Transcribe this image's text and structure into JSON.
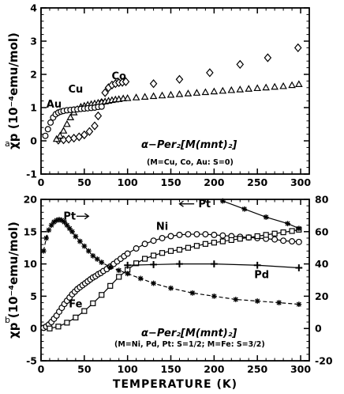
{
  "chart_data": [
    {
      "panel": "a",
      "type": "scatter",
      "ylabel": "χp (10⁻⁴emu/mol)",
      "xlim": [
        0,
        310
      ],
      "ylim": [
        -1,
        4
      ],
      "xticks": [
        0,
        50,
        100,
        150,
        200,
        250,
        300
      ],
      "yticks": [
        -1,
        0,
        1,
        2,
        3,
        4
      ],
      "formula": "α−Per₂[M(mnt)₂]",
      "note": "(M=Cu, Co, Au: S=0)",
      "series": [
        {
          "name": "Co",
          "marker": "diamond",
          "label_pos": [
            90,
            1.85
          ],
          "x": [
            20,
            26,
            32,
            38,
            44,
            50,
            56,
            62,
            66,
            70,
            74,
            78,
            82,
            86,
            90,
            94,
            98,
            130,
            160,
            195,
            230,
            262,
            297
          ],
          "y": [
            0.02,
            0.03,
            0.05,
            0.08,
            0.12,
            0.18,
            0.28,
            0.45,
            0.75,
            1.15,
            1.45,
            1.6,
            1.68,
            1.72,
            1.75,
            1.76,
            1.78,
            1.72,
            1.85,
            2.05,
            2.3,
            2.5,
            2.8
          ]
        },
        {
          "name": "Cu",
          "marker": "triangle",
          "label_pos": [
            40,
            1.45
          ],
          "x": [
            18,
            22,
            26,
            30,
            34,
            38,
            42,
            46,
            50,
            54,
            58,
            62,
            66,
            70,
            74,
            78,
            82,
            86,
            90,
            95,
            100,
            110,
            120,
            130,
            140,
            150,
            160,
            170,
            180,
            190,
            200,
            210,
            220,
            230,
            240,
            250,
            260,
            270,
            280,
            290,
            298
          ],
          "y": [
            0.05,
            0.15,
            0.3,
            0.5,
            0.7,
            0.85,
            0.95,
            1.02,
            1.05,
            1.08,
            1.1,
            1.12,
            1.14,
            1.16,
            1.18,
            1.2,
            1.22,
            1.24,
            1.25,
            1.27,
            1.28,
            1.3,
            1.32,
            1.34,
            1.36,
            1.38,
            1.4,
            1.42,
            1.44,
            1.46,
            1.48,
            1.5,
            1.52,
            1.54,
            1.56,
            1.58,
            1.6,
            1.62,
            1.64,
            1.67,
            1.7
          ]
        },
        {
          "name": "Au",
          "marker": "circle",
          "label_pos": [
            15,
            1.0
          ],
          "x": [
            5,
            8,
            11,
            14,
            17,
            20,
            23,
            26,
            30,
            34,
            38,
            42,
            46,
            50,
            54,
            58,
            62,
            66,
            70
          ],
          "y": [
            0.15,
            0.35,
            0.55,
            0.7,
            0.8,
            0.85,
            0.88,
            0.9,
            0.92,
            0.93,
            0.94,
            0.95,
            0.96,
            0.97,
            0.98,
            0.99,
            1.0,
            1.02,
            1.03
          ]
        }
      ]
    },
    {
      "panel": "b",
      "type": "line",
      "ylabel": "χp (10⁻⁴emu/mol)",
      "xlabel": "TEMPERATURE (K)",
      "xlim": [
        0,
        310
      ],
      "ylim": [
        -5,
        20
      ],
      "y2lim": [
        -20,
        80
      ],
      "xticks": [
        0,
        50,
        100,
        150,
        200,
        250,
        300
      ],
      "yticks": [
        -5,
        0,
        5,
        10,
        15,
        20
      ],
      "y2ticks": [
        -20,
        0,
        20,
        40,
        60,
        80
      ],
      "formula": "α−Per₂[M(mnt)₂]",
      "note": "(M=Ni, Pd, Pt: S=1/2; M=Fe: S=3/2)",
      "arrow_left_text": "Pt",
      "arrow_right_text": "Pt",
      "series": [
        {
          "name": "Ni",
          "marker": "circle",
          "axis": "left",
          "label_pos": [
            140,
            15.3
          ],
          "x": [
            3,
            6,
            9,
            12,
            15,
            18,
            21,
            24,
            27,
            30,
            33,
            36,
            39,
            42,
            45,
            48,
            51,
            54,
            57,
            60,
            63,
            66,
            69,
            72,
            76,
            80,
            84,
            88,
            92,
            96,
            100,
            110,
            120,
            130,
            140,
            150,
            160,
            170,
            180,
            190,
            200,
            210,
            220,
            230,
            240,
            250,
            260,
            270,
            280,
            290,
            298
          ],
          "y": [
            0.1,
            0.3,
            0.6,
            1.0,
            1.5,
            2.0,
            2.6,
            3.2,
            3.8,
            4.3,
            4.8,
            5.3,
            5.7,
            6.1,
            6.4,
            6.7,
            7.0,
            7.3,
            7.6,
            7.9,
            8.1,
            8.4,
            8.6,
            8.9,
            9.2,
            9.6,
            10.0,
            10.4,
            10.8,
            11.2,
            11.6,
            12.4,
            13.1,
            13.6,
            14.0,
            14.3,
            14.5,
            14.6,
            14.6,
            14.6,
            14.5,
            14.4,
            14.3,
            14.2,
            14.1,
            14.0,
            13.9,
            13.8,
            13.6,
            13.5,
            13.4
          ]
        },
        {
          "name": "Fe",
          "marker": "square",
          "axis": "left",
          "label_pos": [
            40,
            3.3
          ],
          "x": [
            10,
            20,
            30,
            40,
            50,
            60,
            70,
            80,
            90,
            100,
            110,
            120,
            130,
            140,
            150,
            160,
            170,
            180,
            190,
            200,
            210,
            220,
            230,
            240,
            250,
            260,
            270,
            280,
            290,
            298
          ],
          "y": [
            0.0,
            0.3,
            0.9,
            1.7,
            2.7,
            3.9,
            5.2,
            6.6,
            8.0,
            9.1,
            10.1,
            10.8,
            11.3,
            11.7,
            12.0,
            12.2,
            12.5,
            12.8,
            13.1,
            13.3,
            13.5,
            13.7,
            13.9,
            14.1,
            14.3,
            14.5,
            14.7,
            14.9,
            15.1,
            15.3
          ]
        },
        {
          "name": "Pd",
          "marker": "plus",
          "axis": "left",
          "label_pos": [
            255,
            7.8
          ],
          "x": [
            100,
            130,
            160,
            200,
            250,
            298
          ],
          "y": [
            9.8,
            9.9,
            10.0,
            10.0,
            9.8,
            9.4
          ]
        },
        {
          "name": "Pt",
          "marker": "star",
          "axis": "right",
          "dashed": true,
          "x": [
            3,
            6,
            9,
            12,
            15,
            18,
            21,
            24,
            27,
            30,
            33,
            36,
            40,
            45,
            50,
            55,
            60,
            65,
            70,
            80,
            90,
            100,
            115,
            130,
            150,
            175,
            200,
            225,
            250,
            275,
            298
          ],
          "y": [
            48,
            56,
            61,
            64,
            66,
            67,
            67.5,
            67,
            66,
            64,
            62,
            60,
            57,
            54,
            51,
            48,
            45,
            43,
            41,
            38,
            36,
            34,
            31,
            28,
            25,
            22,
            20,
            18,
            17,
            16,
            15
          ]
        },
        {
          "name": "Pt",
          "marker": "star",
          "axis": "right",
          "x": [
            210,
            235,
            260,
            285,
            298
          ],
          "y": [
            79,
            74,
            69,
            65,
            62
          ]
        }
      ]
    }
  ]
}
